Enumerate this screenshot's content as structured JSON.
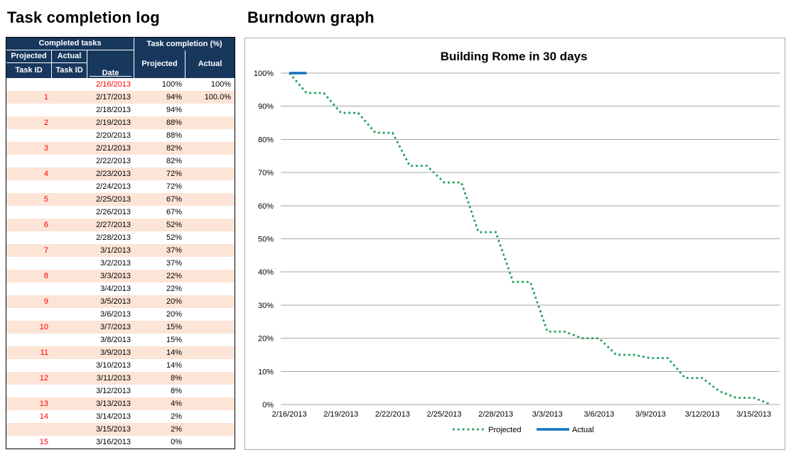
{
  "page": {
    "left_title": "Task completion log",
    "right_title": "Burndown graph"
  },
  "table": {
    "group_headers": {
      "completed": "Completed tasks",
      "completion_pct": "Task completion (%)"
    },
    "columns": {
      "projected_line1": "Projected",
      "projected_line2": "Task ID",
      "actual_line1": "Actual",
      "actual_line2": "Task ID",
      "date": "Date",
      "pct_projected": "Projected",
      "pct_actual": "Actual"
    },
    "rows": [
      {
        "projected_task_id": "",
        "actual_task_id": "",
        "date": "2/16/2013",
        "projected": "100%",
        "actual": "100%",
        "date_red": true
      },
      {
        "projected_task_id": "1",
        "actual_task_id": "",
        "date": "2/17/2013",
        "projected": "94%",
        "actual": "100.0%"
      },
      {
        "projected_task_id": "",
        "actual_task_id": "",
        "date": "2/18/2013",
        "projected": "94%",
        "actual": ""
      },
      {
        "projected_task_id": "2",
        "actual_task_id": "",
        "date": "2/19/2013",
        "projected": "88%",
        "actual": ""
      },
      {
        "projected_task_id": "",
        "actual_task_id": "",
        "date": "2/20/2013",
        "projected": "88%",
        "actual": ""
      },
      {
        "projected_task_id": "3",
        "actual_task_id": "",
        "date": "2/21/2013",
        "projected": "82%",
        "actual": ""
      },
      {
        "projected_task_id": "",
        "actual_task_id": "",
        "date": "2/22/2013",
        "projected": "82%",
        "actual": ""
      },
      {
        "projected_task_id": "4",
        "actual_task_id": "",
        "date": "2/23/2013",
        "projected": "72%",
        "actual": ""
      },
      {
        "projected_task_id": "",
        "actual_task_id": "",
        "date": "2/24/2013",
        "projected": "72%",
        "actual": ""
      },
      {
        "projected_task_id": "5",
        "actual_task_id": "",
        "date": "2/25/2013",
        "projected": "67%",
        "actual": ""
      },
      {
        "projected_task_id": "",
        "actual_task_id": "",
        "date": "2/26/2013",
        "projected": "67%",
        "actual": ""
      },
      {
        "projected_task_id": "6",
        "actual_task_id": "",
        "date": "2/27/2013",
        "projected": "52%",
        "actual": ""
      },
      {
        "projected_task_id": "",
        "actual_task_id": "",
        "date": "2/28/2013",
        "projected": "52%",
        "actual": ""
      },
      {
        "projected_task_id": "7",
        "actual_task_id": "",
        "date": "3/1/2013",
        "projected": "37%",
        "actual": ""
      },
      {
        "projected_task_id": "",
        "actual_task_id": "",
        "date": "3/2/2013",
        "projected": "37%",
        "actual": ""
      },
      {
        "projected_task_id": "8",
        "actual_task_id": "",
        "date": "3/3/2013",
        "projected": "22%",
        "actual": ""
      },
      {
        "projected_task_id": "",
        "actual_task_id": "",
        "date": "3/4/2013",
        "projected": "22%",
        "actual": ""
      },
      {
        "projected_task_id": "9",
        "actual_task_id": "",
        "date": "3/5/2013",
        "projected": "20%",
        "actual": ""
      },
      {
        "projected_task_id": "",
        "actual_task_id": "",
        "date": "3/6/2013",
        "projected": "20%",
        "actual": ""
      },
      {
        "projected_task_id": "10",
        "actual_task_id": "",
        "date": "3/7/2013",
        "projected": "15%",
        "actual": ""
      },
      {
        "projected_task_id": "",
        "actual_task_id": "",
        "date": "3/8/2013",
        "projected": "15%",
        "actual": ""
      },
      {
        "projected_task_id": "11",
        "actual_task_id": "",
        "date": "3/9/2013",
        "projected": "14%",
        "actual": ""
      },
      {
        "projected_task_id": "",
        "actual_task_id": "",
        "date": "3/10/2013",
        "projected": "14%",
        "actual": ""
      },
      {
        "projected_task_id": "12",
        "actual_task_id": "",
        "date": "3/11/2013",
        "projected": "8%",
        "actual": ""
      },
      {
        "projected_task_id": "",
        "actual_task_id": "",
        "date": "3/12/2013",
        "projected": "8%",
        "actual": ""
      },
      {
        "projected_task_id": "13",
        "actual_task_id": "",
        "date": "3/13/2013",
        "projected": "4%",
        "actual": ""
      },
      {
        "projected_task_id": "14",
        "actual_task_id": "",
        "date": "3/14/2013",
        "projected": "2%",
        "actual": ""
      },
      {
        "projected_task_id": "",
        "actual_task_id": "",
        "date": "3/15/2013",
        "projected": "2%",
        "actual": ""
      },
      {
        "projected_task_id": "15",
        "actual_task_id": "",
        "date": "3/16/2013",
        "projected": "0%",
        "actual": ""
      }
    ]
  },
  "colors": {
    "header_bg": "#17375D",
    "header_text": "#FFFFFF",
    "band": "#FCE4D6",
    "red_text": "#FF0000",
    "projected_green": "#1EA05A",
    "actual_blue": "#1272BD",
    "gridline": "#A6A6A6",
    "chart_border": "#ABABAB"
  },
  "chart_data": {
    "type": "line",
    "title": "Building Rome in 30 days",
    "x": [
      "2/16/2013",
      "2/17/2013",
      "2/18/2013",
      "2/19/2013",
      "2/20/2013",
      "2/21/2013",
      "2/22/2013",
      "2/23/2013",
      "2/24/2013",
      "2/25/2013",
      "2/26/2013",
      "2/27/2013",
      "2/28/2013",
      "3/1/2013",
      "3/2/2013",
      "3/3/2013",
      "3/4/2013",
      "3/5/2013",
      "3/6/2013",
      "3/7/2013",
      "3/8/2013",
      "3/9/2013",
      "3/10/2013",
      "3/11/2013",
      "3/12/2013",
      "3/13/2013",
      "3/14/2013",
      "3/15/2013",
      "3/16/2013"
    ],
    "x_tick_labels": [
      "2/16/2013",
      "2/19/2013",
      "2/22/2013",
      "2/25/2013",
      "2/28/2013",
      "3/3/2013",
      "3/6/2013",
      "3/9/2013",
      "3/12/2013",
      "3/15/2013"
    ],
    "x_tick_step": 3,
    "series": [
      {
        "name": "Projected",
        "style": "dotted",
        "color": "#1EA05A",
        "values": [
          100,
          94,
          94,
          88,
          88,
          82,
          82,
          72,
          72,
          67,
          67,
          52,
          52,
          37,
          37,
          22,
          22,
          20,
          20,
          15,
          15,
          14,
          14,
          8,
          8,
          4,
          2,
          2,
          0
        ]
      },
      {
        "name": "Actual",
        "style": "solid",
        "color": "#1272BD",
        "values": [
          100,
          100
        ]
      }
    ],
    "ylim": [
      0,
      100
    ],
    "y_ticks": [
      0,
      10,
      20,
      30,
      40,
      50,
      60,
      70,
      80,
      90,
      100
    ],
    "y_tick_suffix": "%",
    "grid": true,
    "legend_position": "bottom"
  }
}
